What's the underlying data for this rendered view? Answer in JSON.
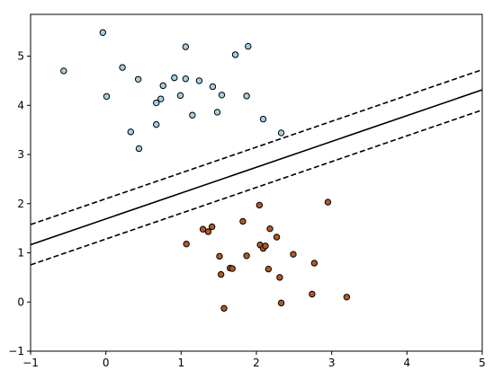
{
  "chart_data": {
    "type": "scatter",
    "xlim": [
      -1,
      5
    ],
    "ylim": [
      -1,
      5.85
    ],
    "xticks": [
      "−1",
      "0",
      "1",
      "2",
      "3",
      "4",
      "5"
    ],
    "yticks": [
      "−1",
      "0",
      "1",
      "2",
      "3",
      "4",
      "5"
    ],
    "xtick_values": [
      -1,
      0,
      1,
      2,
      3,
      4,
      5
    ],
    "ytick_values": [
      -1,
      0,
      1,
      2,
      3,
      4,
      5
    ],
    "grid": false,
    "series": [
      {
        "color": "#a6cee3",
        "points": [
          [
            -0.04,
            5.48
          ],
          [
            -0.56,
            4.7
          ],
          [
            0.01,
            4.18
          ],
          [
            0.22,
            4.77
          ],
          [
            0.43,
            4.53
          ],
          [
            0.33,
            3.46
          ],
          [
            0.44,
            3.12
          ],
          [
            0.67,
            3.61
          ],
          [
            0.67,
            4.05
          ],
          [
            0.73,
            4.13
          ],
          [
            0.76,
            4.4
          ],
          [
            0.91,
            4.56
          ],
          [
            0.99,
            4.2
          ],
          [
            1.06,
            4.54
          ],
          [
            1.06,
            5.19
          ],
          [
            1.15,
            3.8
          ],
          [
            1.24,
            4.5
          ],
          [
            1.42,
            4.38
          ],
          [
            1.48,
            3.86
          ],
          [
            1.54,
            4.21
          ],
          [
            1.72,
            5.03
          ],
          [
            1.87,
            4.19
          ],
          [
            1.89,
            5.2
          ],
          [
            2.09,
            3.72
          ],
          [
            2.33,
            3.44
          ]
        ]
      },
      {
        "color": "#b15928",
        "points": [
          [
            1.07,
            1.18
          ],
          [
            1.29,
            1.48
          ],
          [
            1.36,
            1.43
          ],
          [
            1.41,
            1.53
          ],
          [
            1.51,
            0.93
          ],
          [
            1.53,
            0.56
          ],
          [
            1.57,
            -0.13
          ],
          [
            1.65,
            0.69
          ],
          [
            1.68,
            0.68
          ],
          [
            1.82,
            1.64
          ],
          [
            1.87,
            0.94
          ],
          [
            2.04,
            1.97
          ],
          [
            2.05,
            1.16
          ],
          [
            2.09,
            1.09
          ],
          [
            2.12,
            1.14
          ],
          [
            2.16,
            0.67
          ],
          [
            2.18,
            1.49
          ],
          [
            2.27,
            1.32
          ],
          [
            2.31,
            0.5
          ],
          [
            2.33,
            -0.02
          ],
          [
            2.49,
            0.97
          ],
          [
            2.74,
            0.16
          ],
          [
            2.77,
            0.79
          ],
          [
            2.95,
            2.03
          ],
          [
            3.2,
            0.1
          ]
        ]
      }
    ],
    "lines": [
      {
        "style": "solid",
        "slope": 0.525,
        "intercept": 1.69
      },
      {
        "style": "dashed",
        "slope": 0.525,
        "intercept": 2.1
      },
      {
        "style": "dashed",
        "slope": 0.525,
        "intercept": 1.28
      }
    ]
  }
}
